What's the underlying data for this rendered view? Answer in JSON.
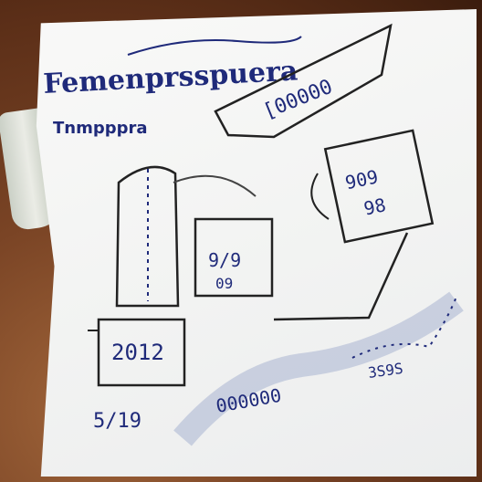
{
  "sketch": {
    "title": "Femenprsspuera",
    "subtitle": "Tnmpppra",
    "banner_label": "[00000",
    "box_top_right": "909",
    "box_top_right_row2": "98",
    "box_center": "9/9",
    "box_center_row2": "09",
    "box_left": "2012",
    "left_numbers": "5/19",
    "lower_right_numbers": "3S9S",
    "flow_numbers": "000000",
    "ink_color": "#1f2a7a",
    "paper_color": "#f5f6f5",
    "table_color": "#6b3a1f"
  }
}
